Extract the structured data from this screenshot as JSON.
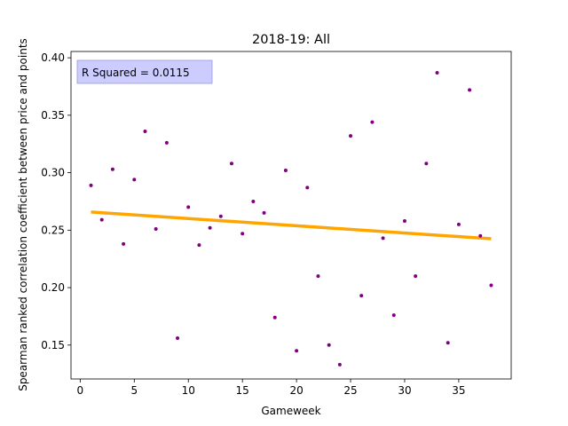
{
  "chart_data": {
    "type": "scatter",
    "title": "2018-19: All",
    "xlabel": "Gameweek",
    "ylabel": "Spearman ranked correlation coefficient between price and points",
    "xlim": [
      -0.85,
      39.85
    ],
    "ylim": [
      0.1205,
      0.4055
    ],
    "xticks": [
      0,
      5,
      10,
      15,
      20,
      25,
      30,
      35
    ],
    "yticks": [
      0.15,
      0.2,
      0.25,
      0.3,
      0.35,
      0.4
    ],
    "ytick_labels": [
      "0.15",
      "0.20",
      "0.25",
      "0.30",
      "0.35",
      "0.40"
    ],
    "grid": false,
    "annotation": "R Squared = 0.0115",
    "colors": {
      "points": "#800080",
      "trend": "#ffa500",
      "annotation_face": "#ccccff",
      "annotation_edge": "#9999dd"
    },
    "points": [
      {
        "x": 1,
        "y": 0.289
      },
      {
        "x": 2,
        "y": 0.259
      },
      {
        "x": 3,
        "y": 0.303
      },
      {
        "x": 4,
        "y": 0.238
      },
      {
        "x": 5,
        "y": 0.294
      },
      {
        "x": 6,
        "y": 0.336
      },
      {
        "x": 7,
        "y": 0.251
      },
      {
        "x": 8,
        "y": 0.326
      },
      {
        "x": 9,
        "y": 0.156
      },
      {
        "x": 10,
        "y": 0.27
      },
      {
        "x": 11,
        "y": 0.237
      },
      {
        "x": 12,
        "y": 0.252
      },
      {
        "x": 13,
        "y": 0.262
      },
      {
        "x": 14,
        "y": 0.308
      },
      {
        "x": 15,
        "y": 0.247
      },
      {
        "x": 16,
        "y": 0.275
      },
      {
        "x": 17,
        "y": 0.265
      },
      {
        "x": 18,
        "y": 0.174
      },
      {
        "x": 19,
        "y": 0.302
      },
      {
        "x": 20,
        "y": 0.145
      },
      {
        "x": 21,
        "y": 0.287
      },
      {
        "x": 22,
        "y": 0.21
      },
      {
        "x": 23,
        "y": 0.15
      },
      {
        "x": 24,
        "y": 0.133
      },
      {
        "x": 25,
        "y": 0.332
      },
      {
        "x": 26,
        "y": 0.193
      },
      {
        "x": 27,
        "y": 0.344
      },
      {
        "x": 28,
        "y": 0.243
      },
      {
        "x": 29,
        "y": 0.176
      },
      {
        "x": 30,
        "y": 0.258
      },
      {
        "x": 31,
        "y": 0.21
      },
      {
        "x": 32,
        "y": 0.308
      },
      {
        "x": 33,
        "y": 0.387
      },
      {
        "x": 34,
        "y": 0.152
      },
      {
        "x": 35,
        "y": 0.255
      },
      {
        "x": 36,
        "y": 0.372
      },
      {
        "x": 37,
        "y": 0.245
      },
      {
        "x": 38,
        "y": 0.202
      }
    ],
    "trend_line": {
      "x": [
        1,
        38
      ],
      "y": [
        0.2658,
        0.2425
      ]
    }
  }
}
